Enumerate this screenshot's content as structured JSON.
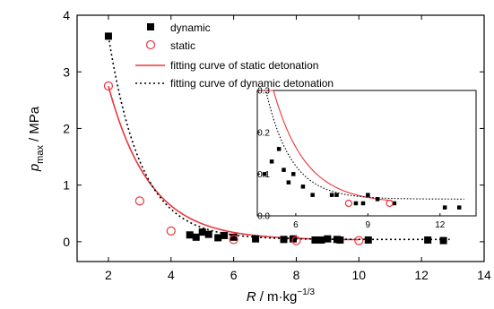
{
  "chart_data": [
    {
      "type": "scatter",
      "xlabel_var": "R",
      "xlabel_unit": "/ m·kg",
      "xlabel_exp": "−1/3",
      "ylabel_var": "p",
      "ylabel_sub": "max",
      "ylabel_unit": "/ MPa",
      "xlim": [
        1,
        14
      ],
      "ylim": [
        -0.35,
        4
      ],
      "x_ticks": [
        2,
        4,
        6,
        8,
        10,
        12,
        14
      ],
      "y_ticks": [
        0,
        1,
        2,
        3,
        4
      ],
      "grid": false,
      "legend_placement": "top-center",
      "series": [
        {
          "name": "dynamic",
          "marker": "filled-square",
          "color": "#000000",
          "points": [
            {
              "x": 2.0,
              "y": 3.63
            },
            {
              "x": 4.6,
              "y": 0.12
            },
            {
              "x": 4.8,
              "y": 0.08
            },
            {
              "x": 5.0,
              "y": 0.17
            },
            {
              "x": 5.2,
              "y": 0.13
            },
            {
              "x": 5.5,
              "y": 0.07
            },
            {
              "x": 5.7,
              "y": 0.11
            },
            {
              "x": 6.0,
              "y": 0.08
            },
            {
              "x": 6.7,
              "y": 0.05
            },
            {
              "x": 7.6,
              "y": 0.04
            },
            {
              "x": 7.9,
              "y": 0.05
            },
            {
              "x": 8.6,
              "y": 0.03
            },
            {
              "x": 8.8,
              "y": 0.03
            },
            {
              "x": 9.0,
              "y": 0.05
            },
            {
              "x": 9.3,
              "y": 0.04
            },
            {
              "x": 9.4,
              "y": 0.03
            },
            {
              "x": 10.3,
              "y": 0.03
            },
            {
              "x": 12.2,
              "y": 0.03
            },
            {
              "x": 12.7,
              "y": 0.02
            }
          ]
        },
        {
          "name": "static",
          "marker": "open-circle",
          "color": "#e8383d",
          "points": [
            {
              "x": 2.0,
              "y": 2.75
            },
            {
              "x": 3.0,
              "y": 0.72
            },
            {
              "x": 4.0,
              "y": 0.19
            },
            {
              "x": 6.0,
              "y": 0.04
            },
            {
              "x": 8.0,
              "y": 0.02
            },
            {
              "x": 10.0,
              "y": 0.02
            }
          ]
        },
        {
          "name": "fitting curve of static detonation",
          "line_style": "solid",
          "color": "#e8383d",
          "curve": {
            "asymptote": 0.03,
            "amplitude": 2.72,
            "decay": 1.33,
            "x_start": 2.0,
            "x_end": 10.0
          }
        },
        {
          "name": "fitting curve of dynamic detonation",
          "line_style": "dotted",
          "color": "#000000",
          "curve": {
            "asymptote": 0.04,
            "amplitude": 3.59,
            "decay": 1.05,
            "x_start": 2.0,
            "x_end": 12.9
          }
        }
      ]
    },
    {
      "type": "scatter",
      "role": "inset",
      "xlim": [
        4.4,
        13.5
      ],
      "ylim": [
        0,
        0.3
      ],
      "x_ticks": [
        6,
        9,
        12
      ],
      "y_ticks": [
        0.0,
        0.1,
        0.2,
        0.3
      ],
      "x_tick_labels": [
        "6",
        "9",
        "12"
      ],
      "y_tick_labels": [
        "0.0",
        "0.1",
        "0.2",
        "0.3"
      ],
      "series": [
        {
          "name": "dynamic",
          "marker": "filled-square",
          "color": "#000000",
          "points": [
            {
              "x": 4.7,
              "y": 0.1
            },
            {
              "x": 5.0,
              "y": 0.13
            },
            {
              "x": 5.3,
              "y": 0.16
            },
            {
              "x": 5.5,
              "y": 0.11
            },
            {
              "x": 5.7,
              "y": 0.08
            },
            {
              "x": 5.9,
              "y": 0.1
            },
            {
              "x": 6.3,
              "y": 0.07
            },
            {
              "x": 6.7,
              "y": 0.05
            },
            {
              "x": 7.5,
              "y": 0.05
            },
            {
              "x": 7.7,
              "y": 0.05
            },
            {
              "x": 8.5,
              "y": 0.03
            },
            {
              "x": 8.8,
              "y": 0.03
            },
            {
              "x": 9.0,
              "y": 0.05
            },
            {
              "x": 9.4,
              "y": 0.04
            },
            {
              "x": 10.1,
              "y": 0.03
            },
            {
              "x": 12.2,
              "y": 0.02
            },
            {
              "x": 12.8,
              "y": 0.02
            }
          ]
        },
        {
          "name": "static",
          "marker": "open-circle",
          "color": "#e8383d",
          "points": [
            {
              "x": 8.2,
              "y": 0.03
            },
            {
              "x": 9.9,
              "y": 0.03
            }
          ]
        },
        {
          "name": "fitting curve of static detonation",
          "line_style": "solid",
          "color": "#e8383d",
          "curve": {
            "asymptote": 0.03,
            "amplitude": 2.72,
            "decay": 1.33,
            "x_start": 4.5,
            "x_end": 10.0
          }
        },
        {
          "name": "fitting curve of dynamic detonation",
          "line_style": "dotted",
          "color": "#000000",
          "curve": {
            "asymptote": 0.04,
            "amplitude": 3.59,
            "decay": 1.05,
            "x_start": 4.4,
            "x_end": 13.0
          }
        }
      ]
    }
  ]
}
